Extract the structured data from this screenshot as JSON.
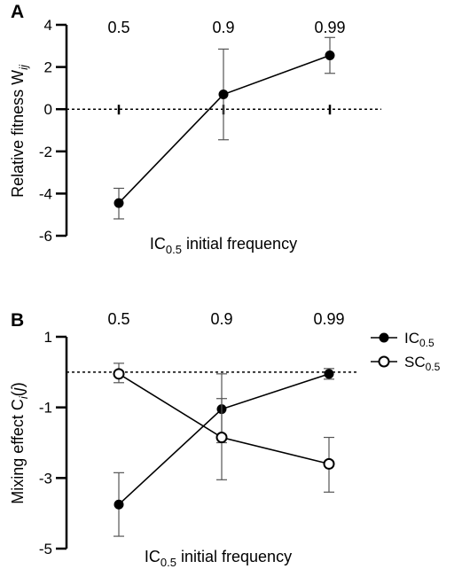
{
  "chart_data": [
    {
      "type": "line",
      "panel_label": "A",
      "categories": [
        "0.5",
        "0.9",
        "0.99"
      ],
      "xlabel": {
        "main": "IC",
        "sub": "0.5",
        "rest": " initial frequency"
      },
      "ylabel": {
        "main": "Relative fitness W",
        "sub": "ij"
      },
      "ylim": [
        -6,
        4
      ],
      "yticks": [
        "4",
        "2",
        "0",
        "-2",
        "-4",
        "-6"
      ],
      "yticks_values": [
        4,
        2,
        0,
        -2,
        -4,
        -6
      ],
      "reference_line": 0,
      "series": [
        {
          "marker": "filled",
          "values": [
            -4.45,
            0.7,
            2.55
          ],
          "err_low": [
            -5.2,
            -1.45,
            1.7
          ],
          "err_high": [
            -3.75,
            2.85,
            3.4
          ]
        }
      ]
    },
    {
      "type": "line",
      "panel_label": "B",
      "categories": [
        "0.5",
        "0.9",
        "0.99"
      ],
      "xlabel": {
        "main": "IC",
        "sub": "0.5",
        "rest": " initial frequency"
      },
      "ylabel": {
        "main": "Mixing effect C",
        "sub": "i",
        "rest": "(",
        "italic": "j",
        "close": ")"
      },
      "ylim": [
        -5,
        1
      ],
      "yticks": [
        "1",
        "-1",
        "-3",
        "-5"
      ],
      "yticks_values": [
        1,
        -1,
        -3,
        -5
      ],
      "reference_line": 0,
      "legend": [
        {
          "main": "IC",
          "sub": "0.5",
          "marker": "filled"
        },
        {
          "main": "SC",
          "sub": "0.5",
          "marker": "open"
        }
      ],
      "series": [
        {
          "name": "IC0.5",
          "marker": "filled",
          "values": [
            -3.75,
            -1.05,
            -0.05
          ],
          "err_low": [
            -4.65,
            -2.0,
            -0.2
          ],
          "err_high": [
            -2.85,
            -0.05,
            0.1
          ]
        },
        {
          "name": "SC0.5",
          "marker": "open",
          "values": [
            -0.05,
            -1.85,
            -2.6
          ],
          "err_low": [
            -0.3,
            -3.05,
            -3.4
          ],
          "err_high": [
            0.25,
            -0.75,
            -1.85
          ]
        }
      ]
    }
  ]
}
